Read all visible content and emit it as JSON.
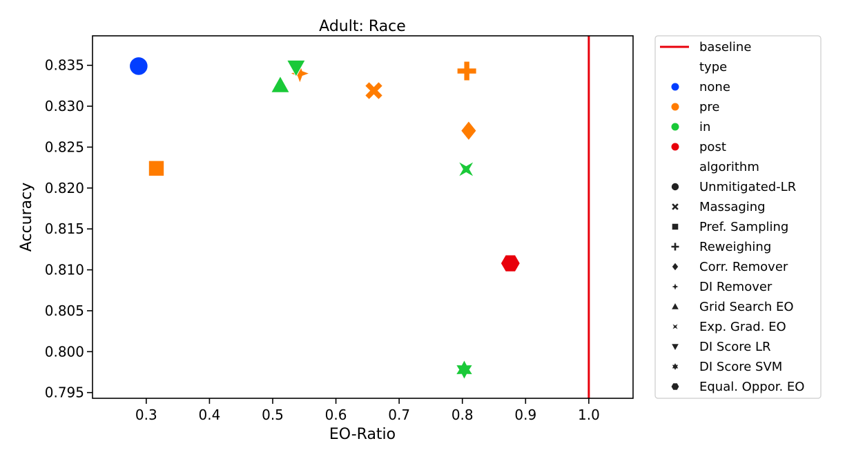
{
  "chart_data": {
    "type": "scatter",
    "title": "Adult: Race",
    "xlabel": "EO-Ratio",
    "ylabel": "Accuracy",
    "xlim": [
      0.215,
      1.07
    ],
    "ylim": [
      0.7943,
      0.8386
    ],
    "xticks": [
      0.3,
      0.4,
      0.5,
      0.6,
      0.7,
      0.8,
      0.9,
      1.0
    ],
    "xtick_labels": [
      "0.3",
      "0.4",
      "0.5",
      "0.6",
      "0.7",
      "0.8",
      "0.9",
      "1.0"
    ],
    "yticks": [
      0.795,
      0.8,
      0.805,
      0.81,
      0.815,
      0.82,
      0.825,
      0.83,
      0.835
    ],
    "ytick_labels": [
      "0.795",
      "0.800",
      "0.805",
      "0.810",
      "0.815",
      "0.820",
      "0.825",
      "0.830",
      "0.835"
    ],
    "baseline": {
      "label": "baseline",
      "x": 1.0,
      "color": "#e8000b"
    },
    "legend_position": "outside right",
    "legend": {
      "type_header": "type",
      "types": [
        {
          "label": "none",
          "color": "#023eff"
        },
        {
          "label": "pre",
          "color": "#ff7c00"
        },
        {
          "label": "in",
          "color": "#1ac938"
        },
        {
          "label": "post",
          "color": "#e8000b"
        }
      ],
      "algorithm_header": "algorithm",
      "algorithms": [
        {
          "label": "Unmitigated-LR",
          "marker": "circle"
        },
        {
          "label": "Massaging",
          "marker": "x"
        },
        {
          "label": "Pref. Sampling",
          "marker": "square"
        },
        {
          "label": "Reweighing",
          "marker": "plus"
        },
        {
          "label": "Corr. Remover",
          "marker": "diamond"
        },
        {
          "label": "DI Remover",
          "marker": "star4"
        },
        {
          "label": "Grid Search EO",
          "marker": "triangle-up"
        },
        {
          "label": "Exp. Grad. EO",
          "marker": "bowtie"
        },
        {
          "label": "DI Score LR",
          "marker": "triangle-down"
        },
        {
          "label": "DI Score SVM",
          "marker": "star6"
        },
        {
          "label": "Equal. Oppor. EO",
          "marker": "hexagon"
        }
      ]
    },
    "points": [
      {
        "algorithm": "Unmitigated-LR",
        "type": "none",
        "x": 0.288,
        "y": 0.8349
      },
      {
        "algorithm": "Massaging",
        "type": "pre",
        "x": 0.66,
        "y": 0.8319
      },
      {
        "algorithm": "Pref. Sampling",
        "type": "pre",
        "x": 0.316,
        "y": 0.8224
      },
      {
        "algorithm": "Reweighing",
        "type": "pre",
        "x": 0.807,
        "y": 0.8343
      },
      {
        "algorithm": "Corr. Remover",
        "type": "pre",
        "x": 0.81,
        "y": 0.827
      },
      {
        "algorithm": "DI Remover",
        "type": "pre",
        "x": 0.543,
        "y": 0.834
      },
      {
        "algorithm": "Grid Search EO",
        "type": "in",
        "x": 0.512,
        "y": 0.8325
      },
      {
        "algorithm": "Exp. Grad. EO",
        "type": "in",
        "x": 0.806,
        "y": 0.8223
      },
      {
        "algorithm": "DI Score LR",
        "type": "in",
        "x": 0.537,
        "y": 0.8348
      },
      {
        "algorithm": "DI Score SVM",
        "type": "in",
        "x": 0.803,
        "y": 0.7978
      },
      {
        "algorithm": "Equal. Oppor. EO",
        "type": "post",
        "x": 0.876,
        "y": 0.8108
      }
    ]
  }
}
